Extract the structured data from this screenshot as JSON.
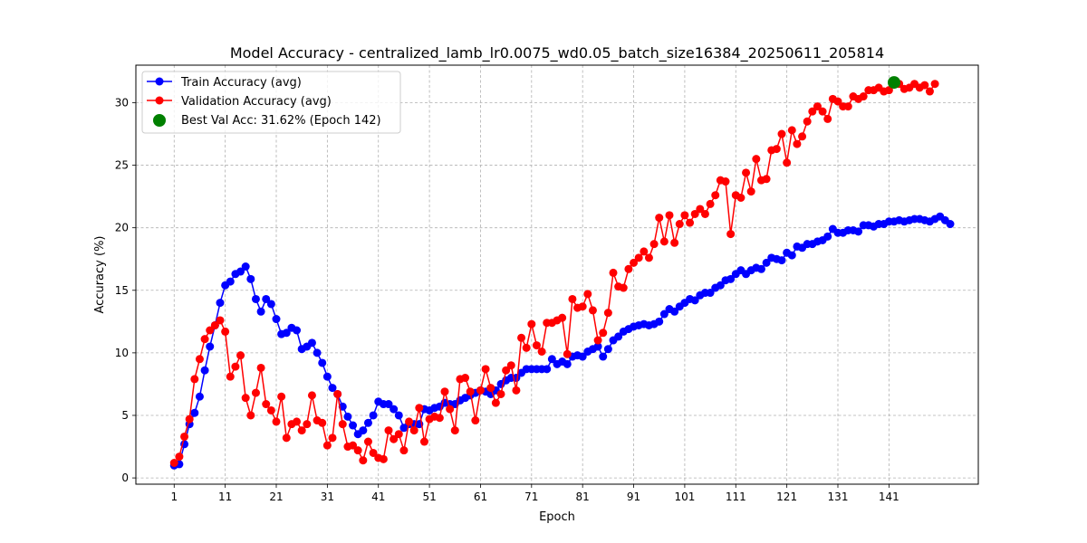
{
  "chart_data": {
    "type": "line",
    "title": "Model Accuracy - centralized_lamb_lr0.0075_wd0.05_batch_size16384_20250611_205814",
    "xlabel": "Epoch",
    "ylabel": "Accuracy (%)",
    "xlim": [
      -6.5,
      158.5
    ],
    "ylim": [
      -0.5,
      33.0
    ],
    "xticks": [
      1,
      11,
      21,
      31,
      41,
      51,
      61,
      71,
      81,
      91,
      101,
      111,
      121,
      131,
      141
    ],
    "yticks": [
      0,
      5,
      10,
      15,
      20,
      25,
      30
    ],
    "grid": true,
    "legend_position": "upper-left",
    "series": [
      {
        "name": "Train Accuracy (avg)",
        "color": "#0000ff",
        "x_start": 1,
        "values": [
          1.0,
          1.1,
          2.7,
          4.3,
          5.2,
          6.5,
          8.6,
          10.5,
          12.2,
          14.0,
          15.4,
          15.7,
          16.3,
          16.5,
          16.9,
          15.9,
          14.3,
          13.3,
          14.3,
          13.9,
          12.7,
          11.5,
          11.6,
          12.0,
          11.8,
          10.3,
          10.5,
          10.8,
          10.0,
          9.2,
          8.1,
          7.2,
          6.7,
          5.7,
          4.9,
          4.2,
          3.5,
          3.8,
          4.4,
          5.0,
          6.1,
          5.9,
          5.9,
          5.5,
          5.0,
          4.0,
          4.3,
          4.3,
          4.3,
          5.5,
          5.4,
          5.6,
          5.7,
          6.0,
          5.9,
          5.9,
          6.2,
          6.4,
          6.6,
          6.8,
          7.0,
          6.9,
          6.7,
          7.0,
          7.5,
          7.8,
          8.0,
          8.0,
          8.4,
          8.7,
          8.7,
          8.7,
          8.7,
          8.7,
          9.5,
          9.1,
          9.3,
          9.1,
          9.7,
          9.8,
          9.7,
          10.1,
          10.3,
          10.5,
          9.7,
          10.3,
          11.0,
          11.3,
          11.7,
          11.9,
          12.1,
          12.2,
          12.3,
          12.2,
          12.3,
          12.5,
          13.1,
          13.5,
          13.3,
          13.7,
          14.0,
          14.3,
          14.2,
          14.6,
          14.8,
          14.8,
          15.2,
          15.4,
          15.8,
          15.9,
          16.3,
          16.6,
          16.3,
          16.6,
          16.8,
          16.7,
          17.2,
          17.6,
          17.5,
          17.4,
          18.0,
          17.8,
          18.5,
          18.4,
          18.7,
          18.7,
          18.9,
          19.0,
          19.3,
          19.9,
          19.6,
          19.6,
          19.8,
          19.8,
          19.7,
          20.2,
          20.2,
          20.1,
          20.3,
          20.3,
          20.5,
          20.5,
          20.6,
          20.5,
          20.6,
          20.7,
          20.7,
          20.6,
          20.5,
          20.7,
          20.9,
          20.6,
          20.3
        ]
      },
      {
        "name": "Validation Accuracy (avg)",
        "color": "#ff0000",
        "x_start": 1,
        "values": [
          1.2,
          1.7,
          3.3,
          4.7,
          7.9,
          9.5,
          11.1,
          11.8,
          12.2,
          12.6,
          11.7,
          8.1,
          8.9,
          9.8,
          6.4,
          5.0,
          6.8,
          8.8,
          5.9,
          5.4,
          4.5,
          6.5,
          3.2,
          4.3,
          4.5,
          3.8,
          4.3,
          6.6,
          4.6,
          4.4,
          2.6,
          3.2,
          6.7,
          4.3,
          2.5,
          2.6,
          2.2,
          1.4,
          2.9,
          2.0,
          1.6,
          1.5,
          3.8,
          3.1,
          3.5,
          2.2,
          4.5,
          3.8,
          5.6,
          2.9,
          4.7,
          4.9,
          4.8,
          6.9,
          5.5,
          3.8,
          7.9,
          8.0,
          6.9,
          4.6,
          7.0,
          8.7,
          7.2,
          6.0,
          6.7,
          8.6,
          9.0,
          7.0,
          11.2,
          10.4,
          12.3,
          10.6,
          10.1,
          12.4,
          12.4,
          12.6,
          12.8,
          9.9,
          14.3,
          13.6,
          13.7,
          14.7,
          13.4,
          11.0,
          11.6,
          13.2,
          16.4,
          15.3,
          15.2,
          16.7,
          17.2,
          17.6,
          18.1,
          17.6,
          18.7,
          20.8,
          18.9,
          21.0,
          18.8,
          20.3,
          21.0,
          20.4,
          21.1,
          21.5,
          21.1,
          21.9,
          22.6,
          23.8,
          23.7,
          19.5,
          22.6,
          22.4,
          24.4,
          22.9,
          25.5,
          23.8,
          23.9,
          26.2,
          26.3,
          27.5,
          25.2,
          27.8,
          26.7,
          27.3,
          28.5,
          29.3,
          29.7,
          29.3,
          28.7,
          30.3,
          30.1,
          29.7,
          29.7,
          30.5,
          30.3,
          30.5,
          31.0,
          31.0,
          31.2,
          30.9,
          31.0,
          31.6,
          31.5,
          31.1,
          31.2,
          31.5,
          31.2,
          31.4,
          30.9,
          31.5
        ]
      }
    ],
    "best_point": {
      "label": "Best Val Acc: 31.62% (Epoch 142)",
      "epoch": 142,
      "value": 31.62,
      "color": "#008000"
    }
  }
}
